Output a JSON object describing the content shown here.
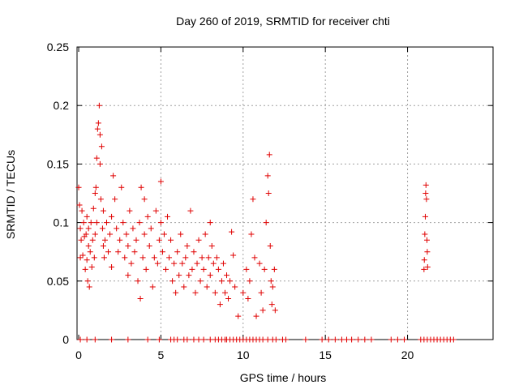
{
  "chart_data": {
    "type": "scatter",
    "title": "Day 260 of 2019, SRMTID for receiver chti",
    "xlabel": "GPS time / hours",
    "ylabel": "SRMTID / TECUs",
    "xlim": [
      -0.1,
      25.2
    ],
    "ylim": [
      0,
      0.25
    ],
    "x_ticks": [
      0,
      5,
      10,
      15,
      20
    ],
    "x_tick_labels": [
      "0",
      "5",
      "10",
      "15",
      "20"
    ],
    "y_ticks": [
      0,
      0.05,
      0.1,
      0.15,
      0.2,
      0.25
    ],
    "y_tick_labels": [
      "0",
      "0.05",
      "0.1",
      "0.15",
      "0.2",
      "0.25"
    ],
    "grid": true,
    "marker": "plus",
    "color": "#e00000",
    "series": [
      {
        "values": [
          [
            0.0,
            0.13
          ],
          [
            0.05,
            0.115
          ],
          [
            0.1,
            0.095
          ],
          [
            0.1,
            0.07
          ],
          [
            0.15,
            0.085
          ],
          [
            0.2,
            0.11
          ],
          [
            0.25,
            0.072
          ],
          [
            0.3,
            0.1
          ],
          [
            0.35,
            0.088
          ],
          [
            0.4,
            0.06
          ],
          [
            0.45,
            0.09
          ],
          [
            0.5,
            0.105
          ],
          [
            0.5,
            0.068
          ],
          [
            0.55,
            0.05
          ],
          [
            0.6,
            0.08
          ],
          [
            0.6,
            0.095
          ],
          [
            0.65,
            0.045
          ],
          [
            0.7,
            0.075
          ],
          [
            0.75,
            0.1
          ],
          [
            0.8,
            0.062
          ],
          [
            0.85,
            0.085
          ],
          [
            0.9,
            0.112
          ],
          [
            0.95,
            0.07
          ],
          [
            1.0,
            0.125
          ],
          [
            1.0,
            0.09
          ],
          [
            1.05,
            0.13
          ],
          [
            1.1,
            0.155
          ],
          [
            1.1,
            0.1
          ],
          [
            1.15,
            0.18
          ],
          [
            1.2,
            0.185
          ],
          [
            1.25,
            0.2
          ],
          [
            1.3,
            0.175
          ],
          [
            1.3,
            0.15
          ],
          [
            1.35,
            0.12
          ],
          [
            1.4,
            0.165
          ],
          [
            1.45,
            0.095
          ],
          [
            1.5,
            0.11
          ],
          [
            1.5,
            0.08
          ],
          [
            1.55,
            0.07
          ],
          [
            1.6,
            0.085
          ],
          [
            1.7,
            0.1
          ],
          [
            1.8,
            0.075
          ],
          [
            1.9,
            0.09
          ],
          [
            2.0,
            0.105
          ],
          [
            2.0,
            0.062
          ],
          [
            2.1,
            0.14
          ],
          [
            2.2,
            0.12
          ],
          [
            2.3,
            0.095
          ],
          [
            2.4,
            0.075
          ],
          [
            2.5,
            0.085
          ],
          [
            2.6,
            0.13
          ],
          [
            2.7,
            0.1
          ],
          [
            2.8,
            0.07
          ],
          [
            2.9,
            0.09
          ],
          [
            3.0,
            0.055
          ],
          [
            3.0,
            0.08
          ],
          [
            3.1,
            0.11
          ],
          [
            3.2,
            0.065
          ],
          [
            3.3,
            0.095
          ],
          [
            3.4,
            0.075
          ],
          [
            3.5,
            0.085
          ],
          [
            3.6,
            0.05
          ],
          [
            3.7,
            0.1
          ],
          [
            3.75,
            0.035
          ],
          [
            3.8,
            0.13
          ],
          [
            3.9,
            0.07
          ],
          [
            4.0,
            0.12
          ],
          [
            4.0,
            0.09
          ],
          [
            4.1,
            0.06
          ],
          [
            4.2,
            0.105
          ],
          [
            4.3,
            0.08
          ],
          [
            4.4,
            0.095
          ],
          [
            4.5,
            0.045
          ],
          [
            4.6,
            0.07
          ],
          [
            4.7,
            0.11
          ],
          [
            4.8,
            0.065
          ],
          [
            4.9,
            0.085
          ],
          [
            5.0,
            0.135
          ],
          [
            5.0,
            0.1
          ],
          [
            5.1,
            0.075
          ],
          [
            5.2,
            0.09
          ],
          [
            5.3,
            0.06
          ],
          [
            5.4,
            0.105
          ],
          [
            5.5,
            0.07
          ],
          [
            5.6,
            0.085
          ],
          [
            5.7,
            0.05
          ],
          [
            5.8,
            0.065
          ],
          [
            5.9,
            0.04
          ],
          [
            6.0,
            0.075
          ],
          [
            6.1,
            0.055
          ],
          [
            6.2,
            0.09
          ],
          [
            6.3,
            0.065
          ],
          [
            6.4,
            0.045
          ],
          [
            6.5,
            0.07
          ],
          [
            6.6,
            0.08
          ],
          [
            6.7,
            0.055
          ],
          [
            6.8,
            0.11
          ],
          [
            6.9,
            0.06
          ],
          [
            7.0,
            0.075
          ],
          [
            7.1,
            0.04
          ],
          [
            7.2,
            0.065
          ],
          [
            7.3,
            0.085
          ],
          [
            7.4,
            0.05
          ],
          [
            7.5,
            0.07
          ],
          [
            7.6,
            0.06
          ],
          [
            7.7,
            0.09
          ],
          [
            7.8,
            0.045
          ],
          [
            7.9,
            0.07
          ],
          [
            8.0,
            0.1
          ],
          [
            8.0,
            0.055
          ],
          [
            8.1,
            0.08
          ],
          [
            8.2,
            0.065
          ],
          [
            8.3,
            0.04
          ],
          [
            8.4,
            0.07
          ],
          [
            8.5,
            0.06
          ],
          [
            8.6,
            0.03
          ],
          [
            8.7,
            0.05
          ],
          [
            8.8,
            0.065
          ],
          [
            8.9,
            0.04
          ],
          [
            9.0,
            0.055
          ],
          [
            9.1,
            0.035
          ],
          [
            9.2,
            0.05
          ],
          [
            9.3,
            0.092
          ],
          [
            9.4,
            0.072
          ],
          [
            9.5,
            0.045
          ],
          [
            9.7,
            0.02
          ],
          [
            10.0,
            0.04
          ],
          [
            10.2,
            0.06
          ],
          [
            10.3,
            0.035
          ],
          [
            10.4,
            0.05
          ],
          [
            10.5,
            0.09
          ],
          [
            10.6,
            0.12
          ],
          [
            10.7,
            0.07
          ],
          [
            10.8,
            0.02
          ],
          [
            11.0,
            0.065
          ],
          [
            11.1,
            0.04
          ],
          [
            11.2,
            0.025
          ],
          [
            11.3,
            0.06
          ],
          [
            11.4,
            0.1
          ],
          [
            11.5,
            0.14
          ],
          [
            11.55,
            0.125
          ],
          [
            11.6,
            0.158
          ],
          [
            11.65,
            0.08
          ],
          [
            11.7,
            0.05
          ],
          [
            11.75,
            0.03
          ],
          [
            11.8,
            0.045
          ],
          [
            11.9,
            0.06
          ],
          [
            11.95,
            0.025
          ],
          [
            21.0,
            0.06
          ],
          [
            21.02,
            0.068
          ],
          [
            21.05,
            0.09
          ],
          [
            21.08,
            0.105
          ],
          [
            21.1,
            0.125
          ],
          [
            21.12,
            0.132
          ],
          [
            21.15,
            0.12
          ],
          [
            21.18,
            0.085
          ],
          [
            21.2,
            0.075
          ],
          [
            21.22,
            0.062
          ],
          [
            0.1,
            0.0
          ],
          [
            0.5,
            0.0
          ],
          [
            1.0,
            0.0
          ],
          [
            2.0,
            0.0
          ],
          [
            3.0,
            0.0
          ],
          [
            4.2,
            0.0
          ],
          [
            4.9,
            0.0
          ],
          [
            5.6,
            0.0
          ],
          [
            5.8,
            0.0
          ],
          [
            6.0,
            0.0
          ],
          [
            6.4,
            0.0
          ],
          [
            6.6,
            0.0
          ],
          [
            7.0,
            0.0
          ],
          [
            7.3,
            0.0
          ],
          [
            7.6,
            0.0
          ],
          [
            8.0,
            0.0
          ],
          [
            8.3,
            0.0
          ],
          [
            8.5,
            0.0
          ],
          [
            8.7,
            0.0
          ],
          [
            8.9,
            0.0
          ],
          [
            9.0,
            0.0
          ],
          [
            9.2,
            0.0
          ],
          [
            9.4,
            0.0
          ],
          [
            9.6,
            0.0
          ],
          [
            9.8,
            0.0
          ],
          [
            10.0,
            0.0
          ],
          [
            10.2,
            0.0
          ],
          [
            10.4,
            0.0
          ],
          [
            10.6,
            0.0
          ],
          [
            10.8,
            0.0
          ],
          [
            11.0,
            0.0
          ],
          [
            11.2,
            0.0
          ],
          [
            11.5,
            0.0
          ],
          [
            11.8,
            0.0
          ],
          [
            12.0,
            0.0
          ],
          [
            12.4,
            0.0
          ],
          [
            12.6,
            0.0
          ],
          [
            13.8,
            0.0
          ],
          [
            14.8,
            0.0
          ],
          [
            15.2,
            0.0
          ],
          [
            15.6,
            0.0
          ],
          [
            16.0,
            0.0
          ],
          [
            16.3,
            0.0
          ],
          [
            16.6,
            0.0
          ],
          [
            17.0,
            0.0
          ],
          [
            17.4,
            0.0
          ],
          [
            17.8,
            0.0
          ],
          [
            19.0,
            0.0
          ],
          [
            19.4,
            0.0
          ],
          [
            19.8,
            0.0
          ],
          [
            20.8,
            0.0
          ],
          [
            21.0,
            0.0
          ],
          [
            21.2,
            0.0
          ],
          [
            21.4,
            0.0
          ],
          [
            21.6,
            0.0
          ],
          [
            21.8,
            0.0
          ],
          [
            22.0,
            0.0
          ],
          [
            22.2,
            0.0
          ],
          [
            22.4,
            0.0
          ],
          [
            22.6,
            0.0
          ],
          [
            22.8,
            0.0
          ]
        ]
      }
    ]
  }
}
